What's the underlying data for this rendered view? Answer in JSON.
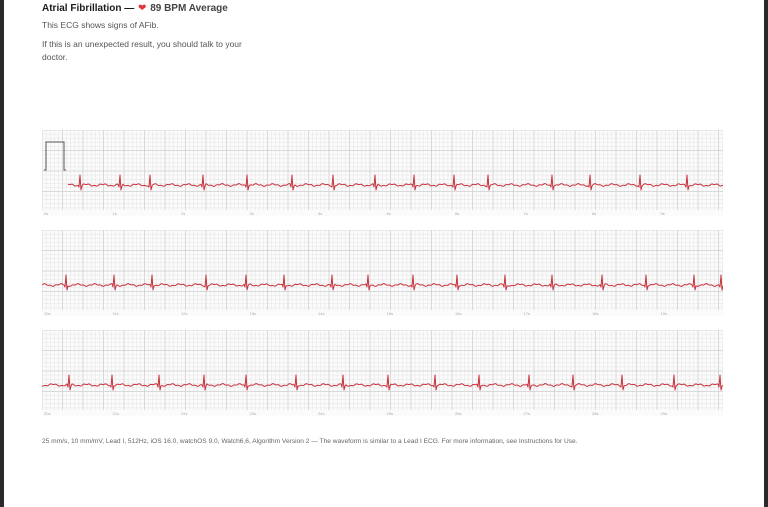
{
  "header": {
    "diagnosis": "Atrial Fibrillation —",
    "heart_icon": "heart-icon",
    "bpm_text": "89 BPM Average",
    "summary": "This ECG shows signs of AFib.",
    "advice": "If this is an unexpected result, you should talk to your doctor."
  },
  "ecg": {
    "strips": [
      {
        "tick_labels": [
          "0s",
          "1s",
          "2s",
          "3s",
          "4s",
          "5s",
          "6s",
          "7s",
          "8s",
          "9s"
        ]
      },
      {
        "tick_labels": [
          "10s",
          "11s",
          "12s",
          "13s",
          "14s",
          "15s",
          "16s",
          "17s",
          "18s",
          "19s"
        ]
      },
      {
        "tick_labels": [
          "20s",
          "21s",
          "22s",
          "23s",
          "24s",
          "25s",
          "26s",
          "27s",
          "28s",
          "29s"
        ]
      }
    ],
    "trace_color": "#c8323c",
    "grid_minor_color": "#e4e4e4",
    "grid_major_color": "#cfcfcf"
  },
  "footer": {
    "text": "25 mm/s, 10 mm/mV, Lead I, 512Hz, iOS 16.0, watchOS 9.0, Watch6,6, Algorithm Version 2 — The waveform is similar to a Lead I ECG. For more information, see Instructions for Use."
  }
}
